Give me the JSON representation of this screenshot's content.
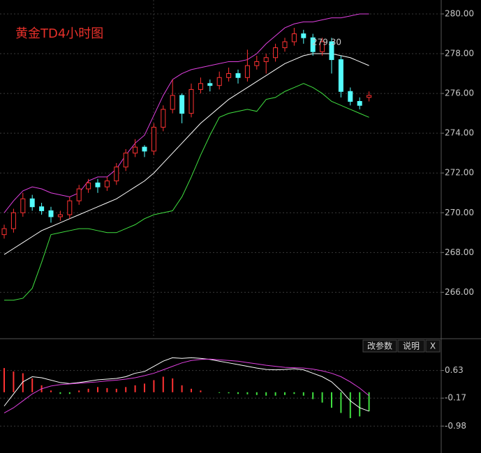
{
  "chart_data": [
    {
      "type": "candlestick",
      "title": "黄金TD4小时图",
      "annotation": "279.30",
      "up_color": "#ff3232",
      "down_color": "#54fcfc",
      "grid": true,
      "ylim": [
        263.7,
        280.7
      ],
      "yticks": [
        {
          "value": 280,
          "label": "280.00"
        },
        {
          "value": 278,
          "label": "278.00"
        },
        {
          "value": 276,
          "label": "276.00"
        },
        {
          "value": 274,
          "label": "274.00"
        },
        {
          "value": 272,
          "label": "272.00"
        },
        {
          "value": 270,
          "label": "270.00"
        },
        {
          "value": 268,
          "label": "268.00"
        },
        {
          "value": 266,
          "label": "266.00"
        }
      ],
      "open": [
        268.9,
        269.2,
        270.0,
        270.7,
        270.3,
        270.1,
        269.8,
        269.9,
        270.6,
        271.2,
        271.5,
        271.3,
        271.6,
        272.3,
        273.0,
        273.3,
        273.1,
        274.3,
        275.2,
        275.9,
        275.0,
        276.2,
        276.5,
        276.4,
        276.8,
        277.0,
        276.8,
        277.4,
        277.6,
        277.8,
        278.3,
        278.6,
        279.0,
        278.8,
        278.1,
        278.6,
        277.7,
        276.1,
        275.6,
        275.8
      ],
      "high": [
        269.4,
        270.2,
        271.0,
        270.9,
        270.5,
        270.3,
        270.1,
        270.8,
        271.4,
        271.7,
        271.7,
        271.8,
        272.5,
        273.2,
        273.7,
        273.4,
        274.5,
        275.4,
        276.7,
        276.0,
        276.5,
        276.8,
        276.7,
        277.1,
        277.3,
        277.2,
        278.2,
        277.9,
        278.0,
        278.5,
        278.8,
        279.3,
        279.2,
        279.0,
        278.8,
        278.8,
        277.9,
        276.3,
        275.8,
        276.1
      ],
      "low": [
        268.7,
        269.0,
        269.8,
        270.1,
        269.9,
        269.5,
        269.6,
        269.7,
        270.4,
        271.0,
        271.0,
        271.1,
        271.4,
        272.1,
        272.8,
        272.8,
        272.9,
        274.1,
        275.0,
        274.5,
        274.8,
        276.0,
        276.1,
        276.2,
        276.6,
        276.5,
        276.6,
        277.2,
        277.0,
        277.6,
        278.1,
        278.4,
        278.5,
        277.9,
        277.9,
        277.0,
        275.8,
        275.4,
        275.2,
        275.6
      ],
      "close": [
        269.2,
        270.0,
        270.7,
        270.3,
        270.1,
        269.8,
        269.9,
        270.6,
        271.2,
        271.5,
        271.3,
        271.6,
        272.3,
        273.0,
        273.3,
        273.1,
        274.3,
        275.2,
        275.9,
        275.0,
        276.2,
        276.5,
        276.4,
        276.8,
        277.0,
        276.8,
        277.4,
        277.6,
        277.8,
        278.3,
        278.6,
        279.0,
        278.8,
        278.1,
        278.6,
        277.7,
        276.1,
        275.6,
        275.4,
        275.9
      ],
      "lines": [
        {
          "color": "#ffffff",
          "values": [
            267.9,
            268.2,
            268.5,
            268.8,
            269.1,
            269.3,
            269.5,
            269.7,
            269.9,
            270.1,
            270.3,
            270.5,
            270.7,
            271.0,
            271.3,
            271.6,
            272.0,
            272.5,
            273.0,
            273.5,
            274.0,
            274.5,
            274.9,
            275.3,
            275.7,
            276.0,
            276.3,
            276.6,
            276.9,
            277.2,
            277.5,
            277.7,
            277.9,
            278.0,
            278.0,
            278.0,
            277.9,
            277.8,
            277.6,
            277.4
          ]
        },
        {
          "color": "#e040e0",
          "values": [
            270.0,
            270.6,
            271.1,
            271.3,
            271.2,
            271.0,
            270.9,
            270.8,
            271.0,
            271.6,
            271.8,
            271.8,
            272.2,
            272.9,
            273.5,
            273.9,
            274.9,
            275.9,
            276.7,
            277.0,
            277.2,
            277.3,
            277.4,
            277.5,
            277.6,
            277.6,
            277.7,
            278.0,
            278.5,
            278.9,
            279.3,
            279.5,
            279.6,
            279.6,
            279.7,
            279.8,
            279.8,
            279.9,
            280.0,
            280.0
          ]
        },
        {
          "color": "#40e040",
          "values": [
            265.6,
            265.6,
            265.7,
            266.2,
            267.5,
            268.9,
            269.0,
            269.1,
            269.2,
            269.2,
            269.1,
            269.0,
            269.0,
            269.2,
            269.4,
            269.7,
            269.9,
            270.0,
            270.1,
            270.8,
            271.8,
            272.9,
            273.9,
            274.8,
            275.0,
            275.1,
            275.2,
            275.1,
            275.7,
            275.8,
            276.1,
            276.3,
            276.5,
            276.3,
            276.0,
            275.6,
            275.4,
            275.2,
            275.0,
            274.8
          ]
        }
      ]
    },
    {
      "type": "macd",
      "buttons": [
        "改参数",
        "说明",
        "X"
      ],
      "grid": true,
      "ylim": [
        -1.76,
        1.53
      ],
      "yticks": [
        0.63,
        -0.17,
        -0.98
      ],
      "up_color": "#ff3232",
      "down_color": "#40e040",
      "histogram": [
        0.7,
        0.6,
        0.55,
        0.4,
        0.2,
        0.05,
        -0.05,
        -0.05,
        0.05,
        0.1,
        0.15,
        0.12,
        0.1,
        0.15,
        0.2,
        0.25,
        0.35,
        0.45,
        0.4,
        0.2,
        0.1,
        0.05,
        0.0,
        -0.02,
        -0.03,
        -0.05,
        -0.06,
        -0.08,
        -0.1,
        -0.1,
        -0.08,
        -0.05,
        -0.1,
        -0.2,
        -0.3,
        -0.45,
        -0.6,
        -0.75,
        -0.7,
        -0.55
      ],
      "lines": [
        {
          "color": "#ffffff",
          "values": [
            -0.4,
            -0.05,
            0.3,
            0.45,
            0.42,
            0.35,
            0.28,
            0.25,
            0.28,
            0.32,
            0.36,
            0.38,
            0.4,
            0.45,
            0.55,
            0.6,
            0.75,
            0.9,
            1.0,
            0.98,
            1.0,
            0.98,
            0.95,
            0.9,
            0.85,
            0.8,
            0.75,
            0.7,
            0.66,
            0.65,
            0.66,
            0.68,
            0.65,
            0.55,
            0.45,
            0.3,
            0.05,
            -0.25,
            -0.45,
            -0.55
          ]
        },
        {
          "color": "#e040e0",
          "values": [
            -0.6,
            -0.45,
            -0.25,
            -0.05,
            0.1,
            0.18,
            0.22,
            0.24,
            0.26,
            0.28,
            0.3,
            0.33,
            0.35,
            0.38,
            0.42,
            0.48,
            0.55,
            0.65,
            0.75,
            0.85,
            0.92,
            0.95,
            0.96,
            0.94,
            0.92,
            0.9,
            0.86,
            0.82,
            0.78,
            0.75,
            0.72,
            0.71,
            0.7,
            0.67,
            0.62,
            0.55,
            0.45,
            0.3,
            0.12,
            -0.1
          ]
        }
      ]
    }
  ]
}
